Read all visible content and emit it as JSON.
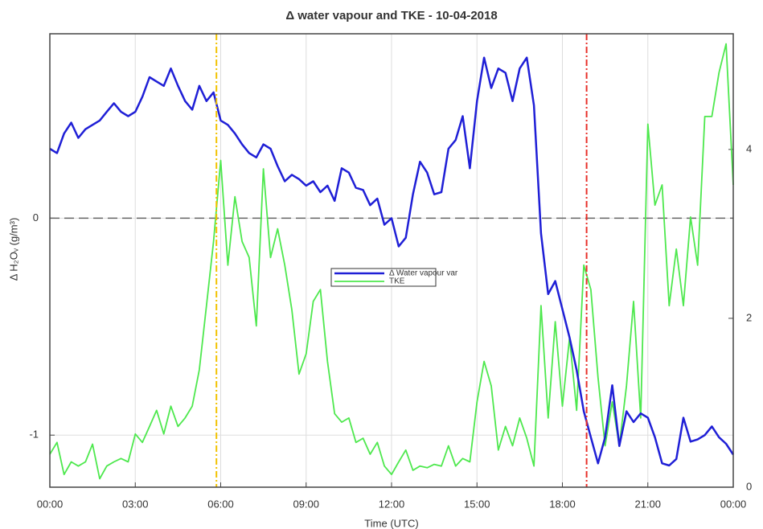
{
  "chart_data": {
    "type": "line",
    "title": "Δ water vapour and TKE - 10-04-2018",
    "xlabel": "Time (UTC)",
    "ylabel": "Δ H₂Oᵥ (g/m³)",
    "xlim": [
      0,
      24
    ],
    "ylim": [
      -1.24,
      0.85
    ],
    "y2lim": [
      0,
      5.37
    ],
    "xticks": [
      {
        "value": 0,
        "label": "00:00"
      },
      {
        "value": 3,
        "label": "03:00"
      },
      {
        "value": 6,
        "label": "06:00"
      },
      {
        "value": 9,
        "label": "09:00"
      },
      {
        "value": 12,
        "label": "12:00"
      },
      {
        "value": 15,
        "label": "15:00"
      },
      {
        "value": 18,
        "label": "18:00"
      },
      {
        "value": 21,
        "label": "21:00"
      },
      {
        "value": 24,
        "label": "00:00"
      }
    ],
    "yticks": [
      -1,
      0
    ],
    "y2ticks": [
      0,
      2,
      4
    ],
    "grid": true,
    "hline": 0,
    "legend": "center",
    "vlines": [
      {
        "x": 5.85,
        "color": "#f2c200"
      },
      {
        "x": 18.85,
        "color": "#e8302a"
      }
    ],
    "x": [
      0,
      0.25,
      0.5,
      0.75,
      1,
      1.25,
      1.5,
      1.75,
      2,
      2.25,
      2.5,
      2.75,
      3,
      3.25,
      3.5,
      3.75,
      4,
      4.25,
      4.5,
      4.75,
      5,
      5.25,
      5.5,
      5.75,
      6,
      6.25,
      6.5,
      6.75,
      7,
      7.25,
      7.5,
      7.75,
      8,
      8.25,
      8.5,
      8.75,
      9,
      9.25,
      9.5,
      9.75,
      10,
      10.25,
      10.5,
      10.75,
      11,
      11.25,
      11.5,
      11.75,
      12,
      12.25,
      12.5,
      12.75,
      13,
      13.25,
      13.5,
      13.75,
      14,
      14.25,
      14.5,
      14.75,
      15,
      15.25,
      15.5,
      15.75,
      16,
      16.25,
      16.5,
      16.75,
      17,
      17.25,
      17.5,
      17.75,
      18,
      18.25,
      18.5,
      18.75,
      19,
      19.25,
      19.5,
      19.75,
      20,
      20.25,
      20.5,
      20.75,
      21,
      21.25,
      21.5,
      21.75,
      22,
      22.25,
      22.5,
      22.75,
      23,
      23.25,
      23.5,
      23.75,
      24
    ],
    "series": [
      {
        "name": "Δ Water vapour var",
        "color": "#1f1fd6",
        "values": [
          0.32,
          0.3,
          0.39,
          0.44,
          0.37,
          0.41,
          0.43,
          0.45,
          0.49,
          0.53,
          0.49,
          0.47,
          0.49,
          0.56,
          0.65,
          0.63,
          0.61,
          0.69,
          0.61,
          0.54,
          0.5,
          0.61,
          0.54,
          0.58,
          0.45,
          0.43,
          0.39,
          0.34,
          0.3,
          0.28,
          0.34,
          0.32,
          0.24,
          0.17,
          0.2,
          0.18,
          0.15,
          0.17,
          0.12,
          0.15,
          0.08,
          0.23,
          0.21,
          0.14,
          0.13,
          0.06,
          0.09,
          -0.03,
          0.0,
          -0.13,
          -0.09,
          0.11,
          0.26,
          0.21,
          0.11,
          0.12,
          0.32,
          0.36,
          0.47,
          0.23,
          0.54,
          0.74,
          0.6,
          0.69,
          0.67,
          0.54,
          0.69,
          0.74,
          0.52,
          -0.07,
          -0.35,
          -0.29,
          -0.42,
          -0.55,
          -0.7,
          -0.89,
          -1.01,
          -1.13,
          -1.01,
          -0.77,
          -1.05,
          -0.89,
          -0.94,
          -0.9,
          -0.92,
          -1.01,
          -1.13,
          -1.14,
          -1.11,
          -0.92,
          -1.03,
          -1.02,
          -1.0,
          -0.96,
          -1.01,
          -1.04,
          -1.09
        ]
      },
      {
        "name": "TKE",
        "color": "#4ee84e",
        "axis": "y2",
        "values": [
          0.39,
          0.53,
          0.15,
          0.3,
          0.25,
          0.3,
          0.51,
          0.1,
          0.25,
          0.3,
          0.34,
          0.3,
          0.63,
          0.53,
          0.72,
          0.91,
          0.63,
          0.96,
          0.72,
          0.82,
          0.96,
          1.39,
          2.15,
          2.91,
          3.87,
          2.63,
          3.44,
          2.91,
          2.72,
          1.91,
          3.77,
          2.72,
          3.06,
          2.63,
          2.1,
          1.34,
          1.58,
          2.2,
          2.34,
          1.49,
          0.87,
          0.77,
          0.82,
          0.53,
          0.58,
          0.39,
          0.53,
          0.25,
          0.15,
          0.3,
          0.44,
          0.2,
          0.25,
          0.23,
          0.27,
          0.25,
          0.49,
          0.25,
          0.34,
          0.3,
          1.01,
          1.49,
          1.2,
          0.44,
          0.72,
          0.49,
          0.82,
          0.58,
          0.25,
          2.15,
          0.82,
          1.96,
          0.96,
          1.77,
          0.91,
          2.63,
          2.34,
          1.3,
          0.49,
          1.01,
          0.49,
          1.2,
          2.2,
          0.82,
          4.3,
          3.34,
          3.58,
          2.15,
          2.82,
          2.15,
          3.2,
          2.63,
          4.39,
          4.39,
          4.91,
          5.25,
          3.58
        ]
      }
    ]
  }
}
